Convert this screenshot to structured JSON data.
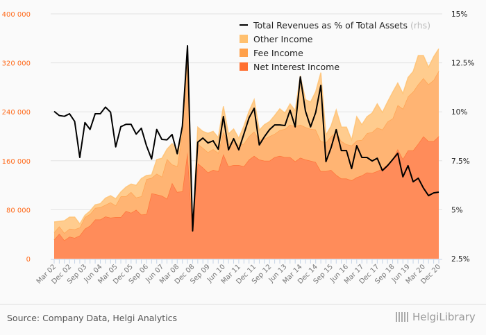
{
  "chart_data": {
    "type": "area",
    "stacked": true,
    "categories": [
      "Mar 02",
      "Jun 02",
      "Sep 02",
      "Dec 02",
      "Mar 03",
      "Jun 03",
      "Sep 03",
      "Dec 03",
      "Mar 04",
      "Jun 04",
      "Sep 04",
      "Dec 04",
      "Mar 05",
      "Jun 05",
      "Sep 05",
      "Dec 05",
      "Mar 06",
      "Jun 06",
      "Sep 06",
      "Dec 06",
      "Mar 07",
      "Jun 07",
      "Sep 07",
      "Dec 07",
      "Mar 08",
      "Jun 08",
      "Sep 08",
      "Dec 08",
      "Mar 09",
      "Jun 09",
      "Sep 09",
      "Dec 09",
      "Mar 10",
      "Jun 10",
      "Sep 10",
      "Dec 10",
      "Mar 11",
      "Jun 11",
      "Sep 11",
      "Dec 11",
      "Mar 12",
      "Jun 12",
      "Sep 12",
      "Dec 12",
      "Mar 13",
      "Jun 13",
      "Sep 13",
      "Dec 13",
      "Mar 14",
      "Jun 14",
      "Sep 14",
      "Dec 14",
      "Mar 15",
      "Jun 15",
      "Sep 15",
      "Dec 15",
      "Mar 16",
      "Jun 16",
      "Sep 16",
      "Dec 16",
      "Mar 17",
      "Jun 17",
      "Sep 17",
      "Dec 17",
      "Mar 18",
      "Jun 18",
      "Sep 18",
      "Dec 18",
      "Mar 19",
      "Jun 19",
      "Sep 19",
      "Dec 19",
      "Mar 20",
      "Jun 20",
      "Sep 20",
      "Dec 20"
    ],
    "label_every": 3,
    "series": [
      {
        "name": "Net Interest Income",
        "color": "#ff6f30",
        "fill": "#ff8c5a",
        "axis": "left",
        "values": [
          31000,
          41000,
          30000,
          36000,
          34000,
          38000,
          49000,
          54000,
          64000,
          64000,
          69000,
          67000,
          68000,
          68000,
          78000,
          75000,
          80000,
          72000,
          73000,
          107000,
          105000,
          103000,
          98000,
          124000,
          109000,
          110000,
          175000,
          45000,
          156000,
          149000,
          141000,
          145000,
          143000,
          171000,
          151000,
          153000,
          153000,
          151000,
          162000,
          168000,
          162000,
          160000,
          160000,
          166000,
          168000,
          166000,
          166000,
          159000,
          165000,
          162000,
          160000,
          158000,
          143000,
          143000,
          145000,
          137000,
          131000,
          131000,
          128000,
          133000,
          136000,
          141000,
          140000,
          143000,
          147000,
          154000,
          162000,
          179000,
          163000,
          177000,
          177000,
          188000,
          200000,
          192000,
          192000,
          200000
        ]
      },
      {
        "name": "Fee Income",
        "color": "#ffa04a",
        "fill": "#ffb473",
        "axis": "left",
        "values": [
          12000,
          12000,
          12000,
          13000,
          14000,
          13000,
          19000,
          19000,
          19000,
          20000,
          19000,
          25000,
          19000,
          34000,
          24000,
          34000,
          20000,
          30000,
          57000,
          25000,
          34000,
          31000,
          65000,
          30000,
          42000,
          97000,
          155000,
          2000,
          32000,
          32000,
          33000,
          34000,
          30000,
          36000,
          36000,
          39000,
          32000,
          37000,
          38000,
          40000,
          32000,
          36000,
          40000,
          38000,
          42000,
          46000,
          53000,
          57000,
          54000,
          53000,
          52000,
          53000,
          49000,
          47000,
          55000,
          70000,
          61000,
          56000,
          57000,
          60000,
          58000,
          64000,
          67000,
          71000,
          64000,
          70000,
          67000,
          72000,
          82000,
          88000,
          96000,
          97000,
          95000,
          93000,
          100000,
          107000
        ]
      },
      {
        "name": "Other Income",
        "color": "#ffc06f",
        "fill": "#ffcc8e",
        "axis": "left",
        "values": [
          17000,
          8000,
          20000,
          19000,
          20000,
          6000,
          3000,
          5000,
          5000,
          6000,
          11000,
          11000,
          11000,
          7000,
          15000,
          13000,
          20000,
          29000,
          6000,
          5000,
          23000,
          30000,
          16000,
          34000,
          26000,
          6000,
          11000,
          2000,
          27000,
          27000,
          31000,
          29000,
          25000,
          42000,
          17000,
          20000,
          12000,
          29000,
          41000,
          52000,
          16000,
          23000,
          24000,
          30000,
          35000,
          26000,
          34000,
          26000,
          80000,
          45000,
          44000,
          62000,
          112000,
          12000,
          17000,
          36000,
          23000,
          28000,
          9000,
          39000,
          25000,
          27000,
          31000,
          39000,
          28000,
          32000,
          43000,
          36000,
          25000,
          31000,
          33000,
          47000,
          37000,
          28000,
          38000,
          36000
        ]
      },
      {
        "name": "Total Revenues as % of Total Assets",
        "rhs_tag": "(rhs)",
        "type": "line",
        "color": "#000000",
        "axis": "right",
        "values": [
          10.02,
          9.81,
          9.77,
          9.9,
          9.51,
          7.67,
          9.45,
          9.1,
          9.9,
          9.9,
          10.24,
          9.98,
          8.21,
          9.24,
          9.36,
          9.36,
          8.86,
          9.16,
          8.27,
          7.59,
          9.1,
          8.59,
          8.57,
          8.84,
          7.86,
          9.27,
          13.37,
          3.92,
          8.45,
          8.66,
          8.41,
          8.52,
          8.09,
          9.76,
          8.06,
          8.63,
          8.06,
          8.87,
          9.69,
          10.18,
          8.31,
          8.73,
          9.09,
          9.33,
          9.33,
          9.3,
          10.08,
          9.23,
          11.78,
          10.04,
          9.23,
          9.97,
          11.35,
          7.46,
          8.17,
          9.09,
          8.02,
          8.02,
          7.1,
          8.27,
          7.67,
          7.67,
          7.49,
          7.63,
          7.0,
          7.25,
          7.56,
          7.88,
          6.68,
          7.25,
          6.43,
          6.61,
          6.11,
          5.72,
          5.86,
          5.9
        ]
      }
    ],
    "y_left": {
      "ylim": [
        0,
        400000
      ],
      "ticks": [
        "0",
        "80 000",
        "160 000",
        "240 000",
        "320 000",
        "400 000"
      ],
      "tick_values": [
        0,
        80000,
        160000,
        240000,
        320000,
        400000
      ]
    },
    "y_right": {
      "ylim": [
        2.5,
        15
      ],
      "ticks": [
        "2.5%",
        "5%",
        "7.5%",
        "10%",
        "12.5%",
        "15%"
      ],
      "tick_values": [
        2.5,
        5,
        7.5,
        10,
        12.5,
        15
      ]
    },
    "grid": true,
    "legend_placement": "top-center",
    "title": "",
    "xlabel": "",
    "ylabel": ""
  },
  "footer": {
    "source": "Source: Company Data, Helgi Analytics",
    "logo": "HelgiLibrary"
  }
}
